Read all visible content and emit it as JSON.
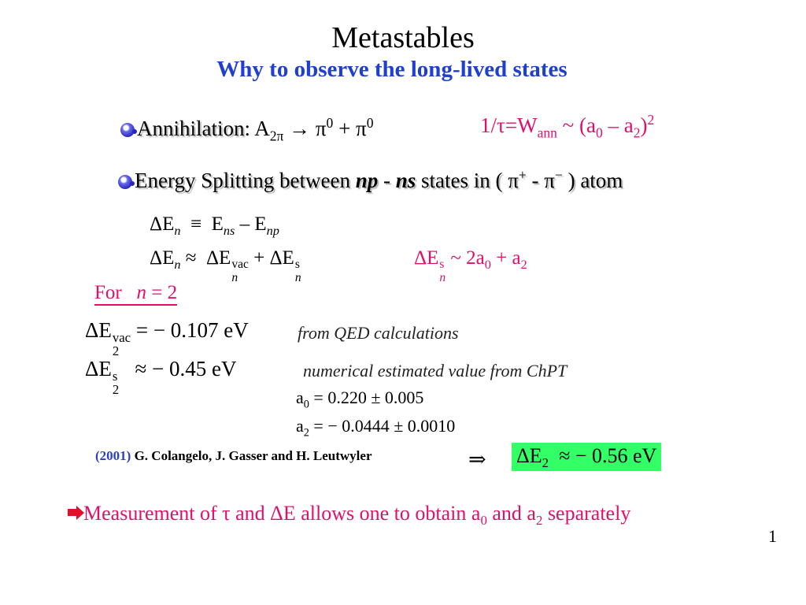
{
  "title": "Metastables",
  "subtitle": "Why to observe the long-lived states",
  "bullet1": {
    "label": "Annihilation",
    "colon": ":",
    "A": "A",
    "A_sub": "2π",
    "arrow": "→",
    "pi1": "π",
    "pi1_sup": "0",
    "plus": "+",
    "pi2": "π",
    "pi2_sup": "0"
  },
  "lifetime": {
    "lhs": "1/τ=W",
    "lhs_sub": "ann",
    "tilde": "~",
    "paren_open": "(a",
    "a0_sub": "0",
    "minus": "–",
    "a2": "a",
    "a2_sub": "2",
    "paren_close": ")",
    "exp": "2"
  },
  "bullet2": {
    "pre": "Energy Splitting between",
    "np": "np",
    "dash": "-",
    "ns": "ns",
    "mid": "states in (",
    "pi_plus": "π",
    "pi_plus_sup": "+",
    "dash2": "-",
    "pi_minus": "π",
    "pi_minus_sup": "−",
    "post": ") atom"
  },
  "eq1": {
    "lhs": "ΔE",
    "lhs_sub": "n",
    "equiv": "≡",
    "e1": "E",
    "e1_sub": "ns",
    "minus": "–",
    "e2": "E",
    "e2_sub": "np"
  },
  "eq2": {
    "lhs": "ΔE",
    "lhs_sub": "n",
    "approx": "≈",
    "t1": "ΔE",
    "t1_sup": "vac",
    "t1_sub": "n",
    "plus": "+",
    "t2": "ΔE",
    "t2_sup": "s",
    "t2_sub": "n"
  },
  "strong_shift": {
    "lhs": "ΔE",
    "sup": "s",
    "sub": "n",
    "rhs": "~ 2a",
    "a0_sub": "0",
    "plus": "+ a",
    "a2_sub": "2"
  },
  "for_n": {
    "label": "For",
    "n": "n",
    "value": "= 2"
  },
  "vac_line": {
    "lhs": "ΔE",
    "sup": "vac",
    "sub": "2",
    "rhs": "=  − 0.107 eV",
    "note": "from QED calculations"
  },
  "s_line": {
    "lhs": "ΔE",
    "sup": "s",
    "sub": "2",
    "rhs": "≈  − 0.45 eV",
    "note": "numerical estimated value from ChPT"
  },
  "a0_value": {
    "a": "a",
    "sub": "0",
    "rhs": "= 0.220 ± 0.005"
  },
  "a2_value": {
    "a": "a",
    "sub": "2",
    "rhs": "= − 0.0444 ± 0.0010"
  },
  "reference": {
    "year": "(2001)",
    "authors": "G. Colangelo, J. Gasser and H. Leutwyler"
  },
  "implies": "⇒",
  "result": {
    "lhs": "ΔE",
    "sub": "2",
    "rhs": "≈ − 0.56 eV"
  },
  "conclusion": {
    "t1": "Measurement of τ and ΔE allows one to obtain a",
    "sub0": "0",
    "t2": "and a",
    "sub2": "2",
    "t3": "separately"
  },
  "page_number": "1",
  "colors": {
    "subtitle": "#1f3fd1",
    "accent": "#e0106a",
    "result_box": "#33ff66",
    "reference_year": "#2a3fc9"
  }
}
